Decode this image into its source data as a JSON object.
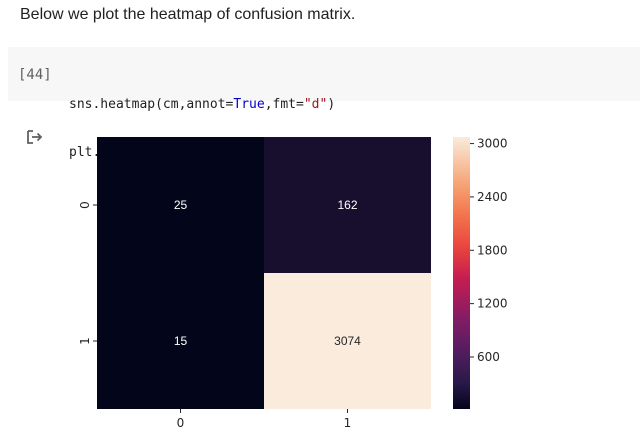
{
  "markdown": {
    "text": "Below we plot the heatmap of confusion matrix."
  },
  "cell": {
    "execution_count": "[44]",
    "code_lines": [
      {
        "prefix": "sns.heatmap(cm,annot=",
        "keyword": "True",
        "middle": ",fmt=",
        "string": "\"d\"",
        "suffix": ")"
      },
      {
        "prefix": "plt.show()",
        "keyword": "",
        "middle": "",
        "string": "",
        "suffix": ""
      }
    ]
  },
  "output": {
    "icon": "output-arrow-icon"
  },
  "chart_data": {
    "type": "heatmap",
    "title": "",
    "xlabel": "",
    "ylabel": "",
    "x_categories": [
      "0",
      "1"
    ],
    "y_categories": [
      "0",
      "1"
    ],
    "values": [
      [
        25,
        162
      ],
      [
        15,
        3074
      ]
    ],
    "annotations": [
      [
        "25",
        "162"
      ],
      [
        "15",
        "3074"
      ]
    ],
    "colorbar": {
      "ticks": [
        "600",
        "1200",
        "1800",
        "2400",
        "3000"
      ],
      "tick_values": [
        600,
        1200,
        1800,
        2400,
        3000
      ],
      "vmin": 15,
      "vmax": 3074,
      "colormap": "rocket"
    },
    "cell_colors": [
      [
        "#03051a",
        "#180f2f"
      ],
      [
        "#03051a",
        "#faebdd"
      ]
    ],
    "annotation_colors": [
      [
        "#ffffff",
        "#ffffff"
      ],
      [
        "#ffffff",
        "#262626"
      ]
    ]
  }
}
